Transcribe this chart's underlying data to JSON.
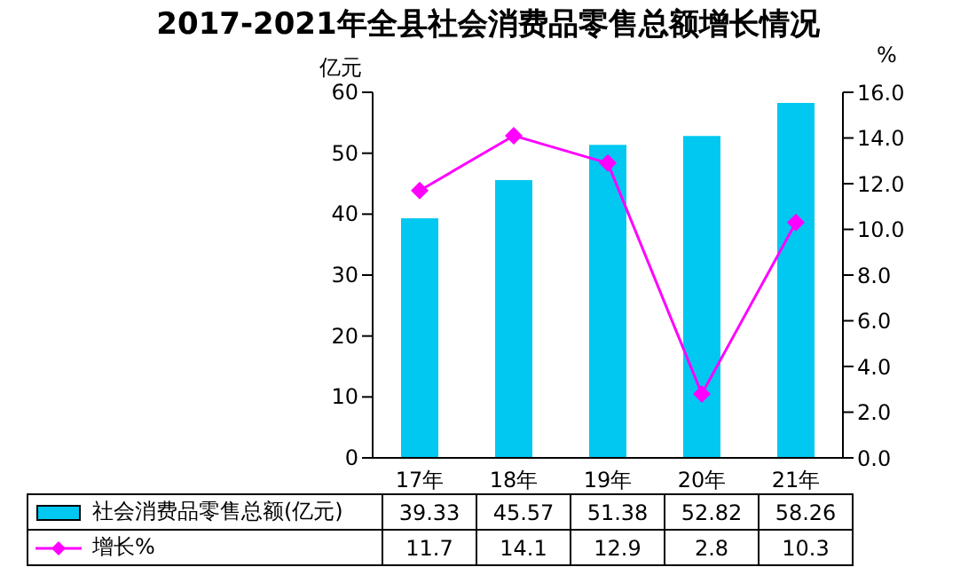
{
  "chart_data": {
    "type": "bar",
    "title": "2017-2021年全县社会消费品零售总额增长情况",
    "ylabel": "亿元",
    "y2label": "%",
    "categories": [
      "17年",
      "18年",
      "19年",
      "20年",
      "21年"
    ],
    "series": [
      {
        "name": "社会消费品零售总额(亿元)",
        "color": "#00c8f0",
        "values": [
          39.33,
          45.57,
          51.38,
          52.82,
          58.26
        ]
      },
      {
        "name": "增长%",
        "type": "line",
        "axis": "y2",
        "color": "#ff00ff",
        "marker": "diamond",
        "values": [
          11.7,
          14.1,
          12.9,
          2.8,
          10.3
        ]
      }
    ],
    "ylim": [
      0,
      60
    ],
    "yticks": [
      0,
      10,
      20,
      30,
      40,
      50,
      60
    ],
    "y2lim": [
      0,
      16
    ],
    "y2ticks": [
      {
        "value": 0,
        "label": "0.0"
      },
      {
        "value": 2,
        "label": "2.0"
      },
      {
        "value": 4,
        "label": "4.0"
      },
      {
        "value": 6,
        "label": "6.0"
      },
      {
        "value": 8,
        "label": "8.0"
      },
      {
        "value": 10,
        "label": "10.0"
      },
      {
        "value": 12,
        "label": "12.0"
      },
      {
        "value": 14,
        "label": "14.0"
      },
      {
        "value": 16,
        "label": "16.0"
      }
    ],
    "data_labels": true,
    "legend": "bottom",
    "grid": false
  }
}
